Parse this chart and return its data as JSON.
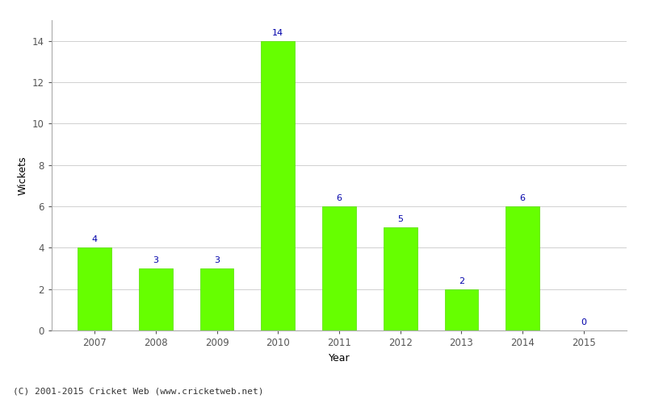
{
  "years": [
    "2007",
    "2008",
    "2009",
    "2010",
    "2011",
    "2012",
    "2013",
    "2014",
    "2015"
  ],
  "values": [
    4,
    3,
    3,
    14,
    6,
    5,
    2,
    6,
    0
  ],
  "bar_color": "#66ff00",
  "bar_edge_color": "#55dd00",
  "label_color": "#0000aa",
  "label_fontsize": 8,
  "xlabel": "Year",
  "ylabel": "Wickets",
  "ylim": [
    0,
    15.0
  ],
  "yticks": [
    0,
    2,
    4,
    6,
    8,
    10,
    12,
    14
  ],
  "grid_color": "#d0d0d0",
  "bg_color": "#ffffff",
  "footnote": "(C) 2001-2015 Cricket Web (www.cricketweb.net)",
  "footnote_fontsize": 8,
  "footnote_color": "#333333",
  "bar_width": 0.55,
  "tick_fontsize": 8.5,
  "axis_label_fontsize": 9
}
